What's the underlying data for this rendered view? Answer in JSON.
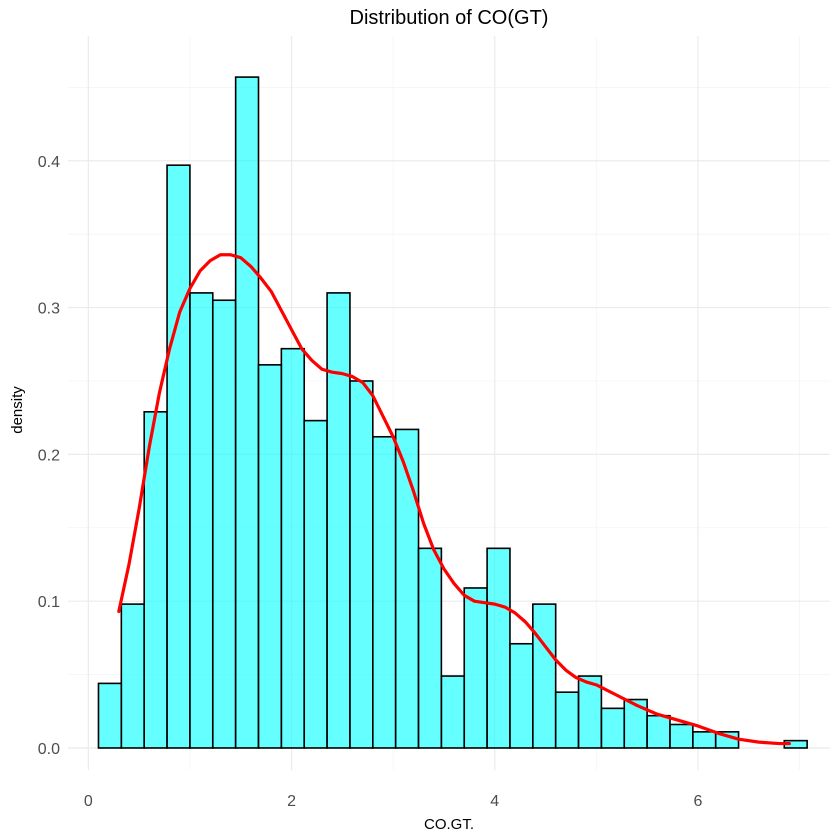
{
  "chart_data": {
    "type": "histogram",
    "title": "Distribution of CO(GT)",
    "xlabel": "CO.GT.",
    "ylabel": "density",
    "xlim": [
      -0.2,
      7.3
    ],
    "ylim": [
      -0.015,
      0.485
    ],
    "x_ticks": [
      0,
      2,
      4,
      6
    ],
    "x_tick_labels": [
      "0",
      "2",
      "4",
      "6"
    ],
    "y_ticks": [
      0.0,
      0.1,
      0.2,
      0.3,
      0.4
    ],
    "y_tick_labels": [
      "0.0",
      "0.1",
      "0.2",
      "0.3",
      "0.4"
    ],
    "grid": true,
    "legend": "none",
    "bins": [
      {
        "x0": 0.1,
        "x1": 0.325,
        "density": 0.044
      },
      {
        "x0": 0.325,
        "x1": 0.55,
        "density": 0.098
      },
      {
        "x0": 0.55,
        "x1": 0.775,
        "density": 0.229
      },
      {
        "x0": 0.775,
        "x1": 1.0,
        "density": 0.397
      },
      {
        "x0": 1.0,
        "x1": 1.225,
        "density": 0.31
      },
      {
        "x0": 1.225,
        "x1": 1.45,
        "density": 0.305
      },
      {
        "x0": 1.45,
        "x1": 1.675,
        "density": 0.457
      },
      {
        "x0": 1.675,
        "x1": 1.9,
        "density": 0.261
      },
      {
        "x0": 1.9,
        "x1": 2.125,
        "density": 0.272
      },
      {
        "x0": 2.125,
        "x1": 2.35,
        "density": 0.223
      },
      {
        "x0": 2.35,
        "x1": 2.575,
        "density": 0.31
      },
      {
        "x0": 2.575,
        "x1": 2.8,
        "density": 0.25
      },
      {
        "x0": 2.8,
        "x1": 3.025,
        "density": 0.212
      },
      {
        "x0": 3.025,
        "x1": 3.25,
        "density": 0.217
      },
      {
        "x0": 3.25,
        "x1": 3.475,
        "density": 0.136
      },
      {
        "x0": 3.475,
        "x1": 3.7,
        "density": 0.049
      },
      {
        "x0": 3.7,
        "x1": 3.925,
        "density": 0.109
      },
      {
        "x0": 3.925,
        "x1": 4.15,
        "density": 0.136
      },
      {
        "x0": 4.15,
        "x1": 4.375,
        "density": 0.071
      },
      {
        "x0": 4.375,
        "x1": 4.6,
        "density": 0.098
      },
      {
        "x0": 4.6,
        "x1": 4.825,
        "density": 0.038
      },
      {
        "x0": 4.825,
        "x1": 5.05,
        "density": 0.049
      },
      {
        "x0": 5.05,
        "x1": 5.275,
        "density": 0.027
      },
      {
        "x0": 5.275,
        "x1": 5.5,
        "density": 0.033
      },
      {
        "x0": 5.5,
        "x1": 5.725,
        "density": 0.022
      },
      {
        "x0": 5.725,
        "x1": 5.95,
        "density": 0.016
      },
      {
        "x0": 5.95,
        "x1": 6.175,
        "density": 0.011
      },
      {
        "x0": 6.175,
        "x1": 6.4,
        "density": 0.011
      },
      {
        "x0": 6.4,
        "x1": 6.625,
        "density": 0.0
      },
      {
        "x0": 6.625,
        "x1": 6.85,
        "density": 0.0
      },
      {
        "x0": 6.85,
        "x1": 7.075,
        "density": 0.005
      }
    ],
    "density_curve": {
      "x": [
        0.3,
        0.4,
        0.5,
        0.6,
        0.7,
        0.8,
        0.9,
        1.0,
        1.1,
        1.2,
        1.3,
        1.4,
        1.5,
        1.6,
        1.7,
        1.8,
        1.9,
        2.0,
        2.1,
        2.2,
        2.3,
        2.4,
        2.5,
        2.6,
        2.7,
        2.8,
        2.9,
        3.0,
        3.1,
        3.2,
        3.3,
        3.4,
        3.5,
        3.6,
        3.7,
        3.8,
        3.9,
        4.0,
        4.1,
        4.2,
        4.3,
        4.4,
        4.5,
        4.6,
        4.7,
        4.8,
        4.9,
        5.0,
        5.2,
        5.4,
        5.6,
        5.8,
        6.0,
        6.2,
        6.4,
        6.6,
        6.8,
        6.9
      ],
      "y": [
        0.093,
        0.125,
        0.163,
        0.205,
        0.242,
        0.272,
        0.297,
        0.313,
        0.325,
        0.332,
        0.336,
        0.336,
        0.334,
        0.328,
        0.32,
        0.311,
        0.298,
        0.285,
        0.272,
        0.264,
        0.258,
        0.256,
        0.255,
        0.253,
        0.249,
        0.24,
        0.226,
        0.212,
        0.195,
        0.175,
        0.153,
        0.135,
        0.122,
        0.112,
        0.104,
        0.1,
        0.099,
        0.098,
        0.096,
        0.092,
        0.086,
        0.078,
        0.069,
        0.06,
        0.053,
        0.048,
        0.045,
        0.043,
        0.036,
        0.029,
        0.023,
        0.019,
        0.015,
        0.01,
        0.006,
        0.004,
        0.003,
        0.003
      ]
    },
    "colors": {
      "bar_fill": "#00ffff",
      "bar_fill_opacity": 0.6,
      "bar_edge": "#000000",
      "density_line": "#ff0000"
    }
  }
}
